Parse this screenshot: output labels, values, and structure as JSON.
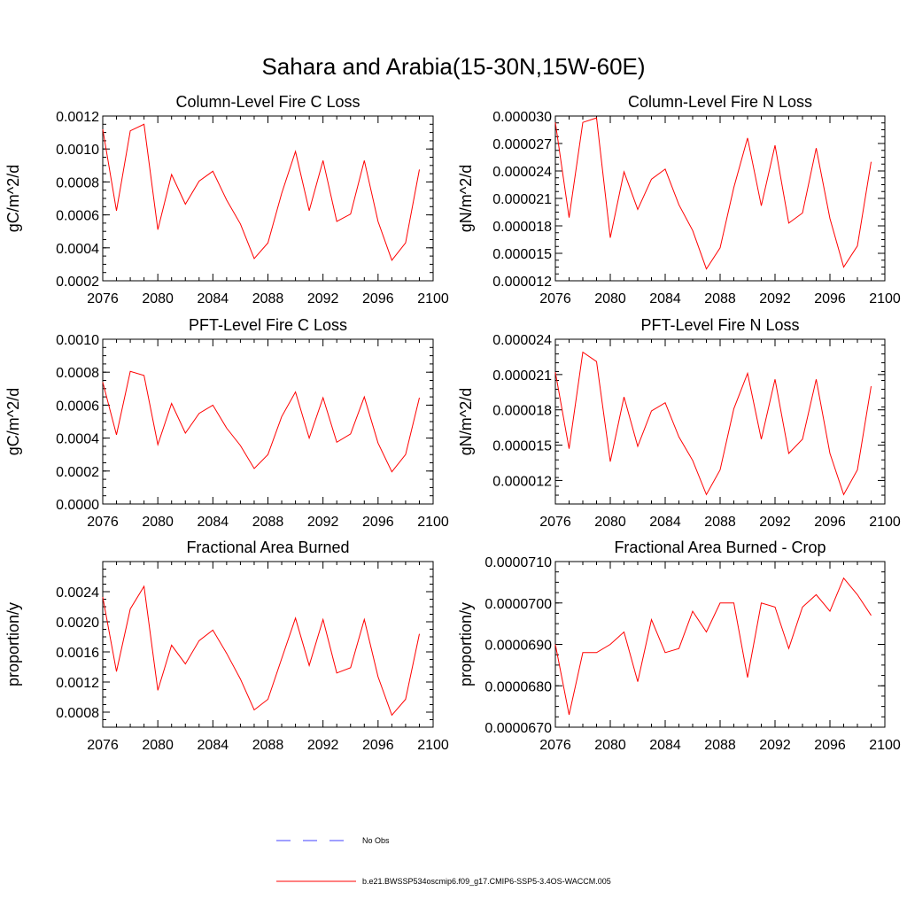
{
  "title": "Sahara and Arabia(15-30N,15W-60E)",
  "colors": {
    "series": "#ff0000",
    "obs": "#4040ff",
    "axis": "#000000"
  },
  "legend": [
    {
      "label": "No Obs",
      "style": "dashed",
      "color": "#4040ff"
    },
    {
      "label": "b.e21.BWSSP534oscmip6.f09_g17.CMIP6-SSP5-3.4OS-WACCM.005",
      "style": "solid",
      "color": "#ff0000"
    }
  ],
  "chart_data": [
    {
      "type": "line",
      "title": "Column-Level Fire C Loss",
      "ylabel": "gC/m^2/d",
      "xlim": [
        2076,
        2100
      ],
      "ylim": [
        0.0002,
        0.0012
      ],
      "xticks": [
        "2076",
        "2080",
        "2084",
        "2088",
        "2092",
        "2096",
        "2100"
      ],
      "yticks": [
        "0.0002",
        "0.0004",
        "0.0006",
        "0.0008",
        "0.0010",
        "0.0012"
      ],
      "x": [
        2076,
        2077,
        2078,
        2079,
        2080,
        2081,
        2082,
        2083,
        2084,
        2085,
        2086,
        2087,
        2088,
        2089,
        2090,
        2091,
        2092,
        2093,
        2094,
        2095,
        2096,
        2097,
        2098,
        2099
      ],
      "series": [
        {
          "values": [
            0.00112,
            0.000625,
            0.00111,
            0.00115,
            0.00051,
            0.000845,
            0.000665,
            0.000805,
            0.000865,
            0.00069,
            0.000545,
            0.000335,
            0.00043,
            0.00073,
            0.000985,
            0.000625,
            0.00093,
            0.00056,
            0.000605,
            0.00093,
            0.00056,
            0.000325,
            0.00043,
            0.000875
          ]
        }
      ]
    },
    {
      "type": "line",
      "title": "Column-Level Fire N Loss",
      "ylabel": "gN/m^2/d",
      "xlim": [
        2076,
        2100
      ],
      "ylim": [
        1.2e-05,
        3e-05
      ],
      "xticks": [
        "2076",
        "2080",
        "2084",
        "2088",
        "2092",
        "2096",
        "2100"
      ],
      "yticks": [
        "0.000012",
        "0.000015",
        "0.000018",
        "0.000021",
        "0.000024",
        "0.000027",
        "0.000030"
      ],
      "x": [
        2076,
        2077,
        2078,
        2079,
        2080,
        2081,
        2082,
        2083,
        2084,
        2085,
        2086,
        2087,
        2088,
        2089,
        2090,
        2091,
        2092,
        2093,
        2094,
        2095,
        2096,
        2097,
        2098,
        2099
      ],
      "series": [
        {
          "values": [
            2.93e-05,
            1.89e-05,
            2.93e-05,
            2.98e-05,
            1.67e-05,
            2.39e-05,
            1.98e-05,
            2.31e-05,
            2.42e-05,
            2.03e-05,
            1.75e-05,
            1.33e-05,
            1.56e-05,
            2.22e-05,
            2.76e-05,
            2.02e-05,
            2.68e-05,
            1.83e-05,
            1.94e-05,
            2.65e-05,
            1.88e-05,
            1.35e-05,
            1.58e-05,
            2.5e-05
          ]
        }
      ]
    },
    {
      "type": "line",
      "title": "PFT-Level Fire C Loss",
      "ylabel": "gC/m^2/d",
      "xlim": [
        2076,
        2100
      ],
      "ylim": [
        0.0,
        0.001
      ],
      "xticks": [
        "2076",
        "2080",
        "2084",
        "2088",
        "2092",
        "2096",
        "2100"
      ],
      "yticks": [
        "0.0000",
        "0.0002",
        "0.0004",
        "0.0006",
        "0.0008",
        "0.0010"
      ],
      "x": [
        2076,
        2077,
        2078,
        2079,
        2080,
        2081,
        2082,
        2083,
        2084,
        2085,
        2086,
        2087,
        2088,
        2089,
        2090,
        2091,
        2092,
        2093,
        2094,
        2095,
        2096,
        2097,
        2098,
        2099
      ],
      "series": [
        {
          "values": [
            0.00074,
            0.00042,
            0.000805,
            0.00078,
            0.00036,
            0.00061,
            0.00043,
            0.00055,
            0.0006,
            0.00046,
            0.000355,
            0.000215,
            0.0003,
            0.00053,
            0.00068,
            0.0004,
            0.000645,
            0.000375,
            0.000425,
            0.00065,
            0.00037,
            0.000195,
            0.0003,
            0.000645
          ]
        }
      ]
    },
    {
      "type": "line",
      "title": "PFT-Level Fire N Loss",
      "ylabel": "gN/m^2/d",
      "xlim": [
        2076,
        2100
      ],
      "ylim": [
        1e-05,
        2.4e-05
      ],
      "xticks": [
        "2076",
        "2080",
        "2084",
        "2088",
        "2092",
        "2096",
        "2100"
      ],
      "yticks": [
        "0.000012",
        "0.000015",
        "0.000018",
        "0.000021",
        "0.000024"
      ],
      "x": [
        2076,
        2077,
        2078,
        2079,
        2080,
        2081,
        2082,
        2083,
        2084,
        2085,
        2086,
        2087,
        2088,
        2089,
        2090,
        2091,
        2092,
        2093,
        2094,
        2095,
        2096,
        2097,
        2098,
        2099
      ],
      "series": [
        {
          "values": [
            2.12e-05,
            1.47e-05,
            2.29e-05,
            2.21e-05,
            1.36e-05,
            1.91e-05,
            1.49e-05,
            1.79e-05,
            1.86e-05,
            1.57e-05,
            1.37e-05,
            1.08e-05,
            1.29e-05,
            1.81e-05,
            2.11e-05,
            1.55e-05,
            2.06e-05,
            1.43e-05,
            1.55e-05,
            2.06e-05,
            1.43e-05,
            1.08e-05,
            1.29e-05,
            2e-05
          ]
        }
      ]
    },
    {
      "type": "line",
      "title": "Fractional Area Burned",
      "ylabel": "proportion/y",
      "xlim": [
        2076,
        2100
      ],
      "ylim": [
        0.0006,
        0.0028
      ],
      "xticks": [
        "2076",
        "2080",
        "2084",
        "2088",
        "2092",
        "2096",
        "2100"
      ],
      "yticks": [
        "0.0008",
        "0.0012",
        "0.0016",
        "0.0020",
        "0.0024"
      ],
      "x": [
        2076,
        2077,
        2078,
        2079,
        2080,
        2081,
        2082,
        2083,
        2084,
        2085,
        2086,
        2087,
        2088,
        2089,
        2090,
        2091,
        2092,
        2093,
        2094,
        2095,
        2096,
        2097,
        2098,
        2099
      ],
      "series": [
        {
          "values": [
            0.00233,
            0.00134,
            0.00217,
            0.00247,
            0.00109,
            0.00169,
            0.00144,
            0.00175,
            0.00189,
            0.00158,
            0.00124,
            0.00083,
            0.00097,
            0.00151,
            0.00205,
            0.00142,
            0.00203,
            0.00132,
            0.00139,
            0.00203,
            0.00127,
            0.00076,
            0.00097,
            0.00184
          ]
        }
      ]
    },
    {
      "type": "line",
      "title": "Fractional Area Burned - Crop",
      "ylabel": "proportion/y",
      "xlim": [
        2076,
        2100
      ],
      "ylim": [
        6.7e-05,
        7.1e-05
      ],
      "xticks": [
        "2076",
        "2080",
        "2084",
        "2088",
        "2092",
        "2096",
        "2100"
      ],
      "yticks": [
        "0.0000670",
        "0.0000680",
        "0.0000690",
        "0.0000700",
        "0.0000710"
      ],
      "x": [
        2076,
        2077,
        2078,
        2079,
        2080,
        2081,
        2082,
        2083,
        2084,
        2085,
        2086,
        2087,
        2088,
        2089,
        2090,
        2091,
        2092,
        2093,
        2094,
        2095,
        2096,
        2097,
        2098,
        2099
      ],
      "series": [
        {
          "values": [
            6.9e-05,
            6.73e-05,
            6.88e-05,
            6.88e-05,
            6.9e-05,
            6.93e-05,
            6.81e-05,
            6.96e-05,
            6.88e-05,
            6.89e-05,
            6.98e-05,
            6.93e-05,
            7e-05,
            7e-05,
            6.82e-05,
            7e-05,
            6.99e-05,
            6.89e-05,
            6.99e-05,
            7.02e-05,
            6.98e-05,
            7.06e-05,
            7.02e-05,
            6.97e-05
          ]
        }
      ]
    }
  ]
}
